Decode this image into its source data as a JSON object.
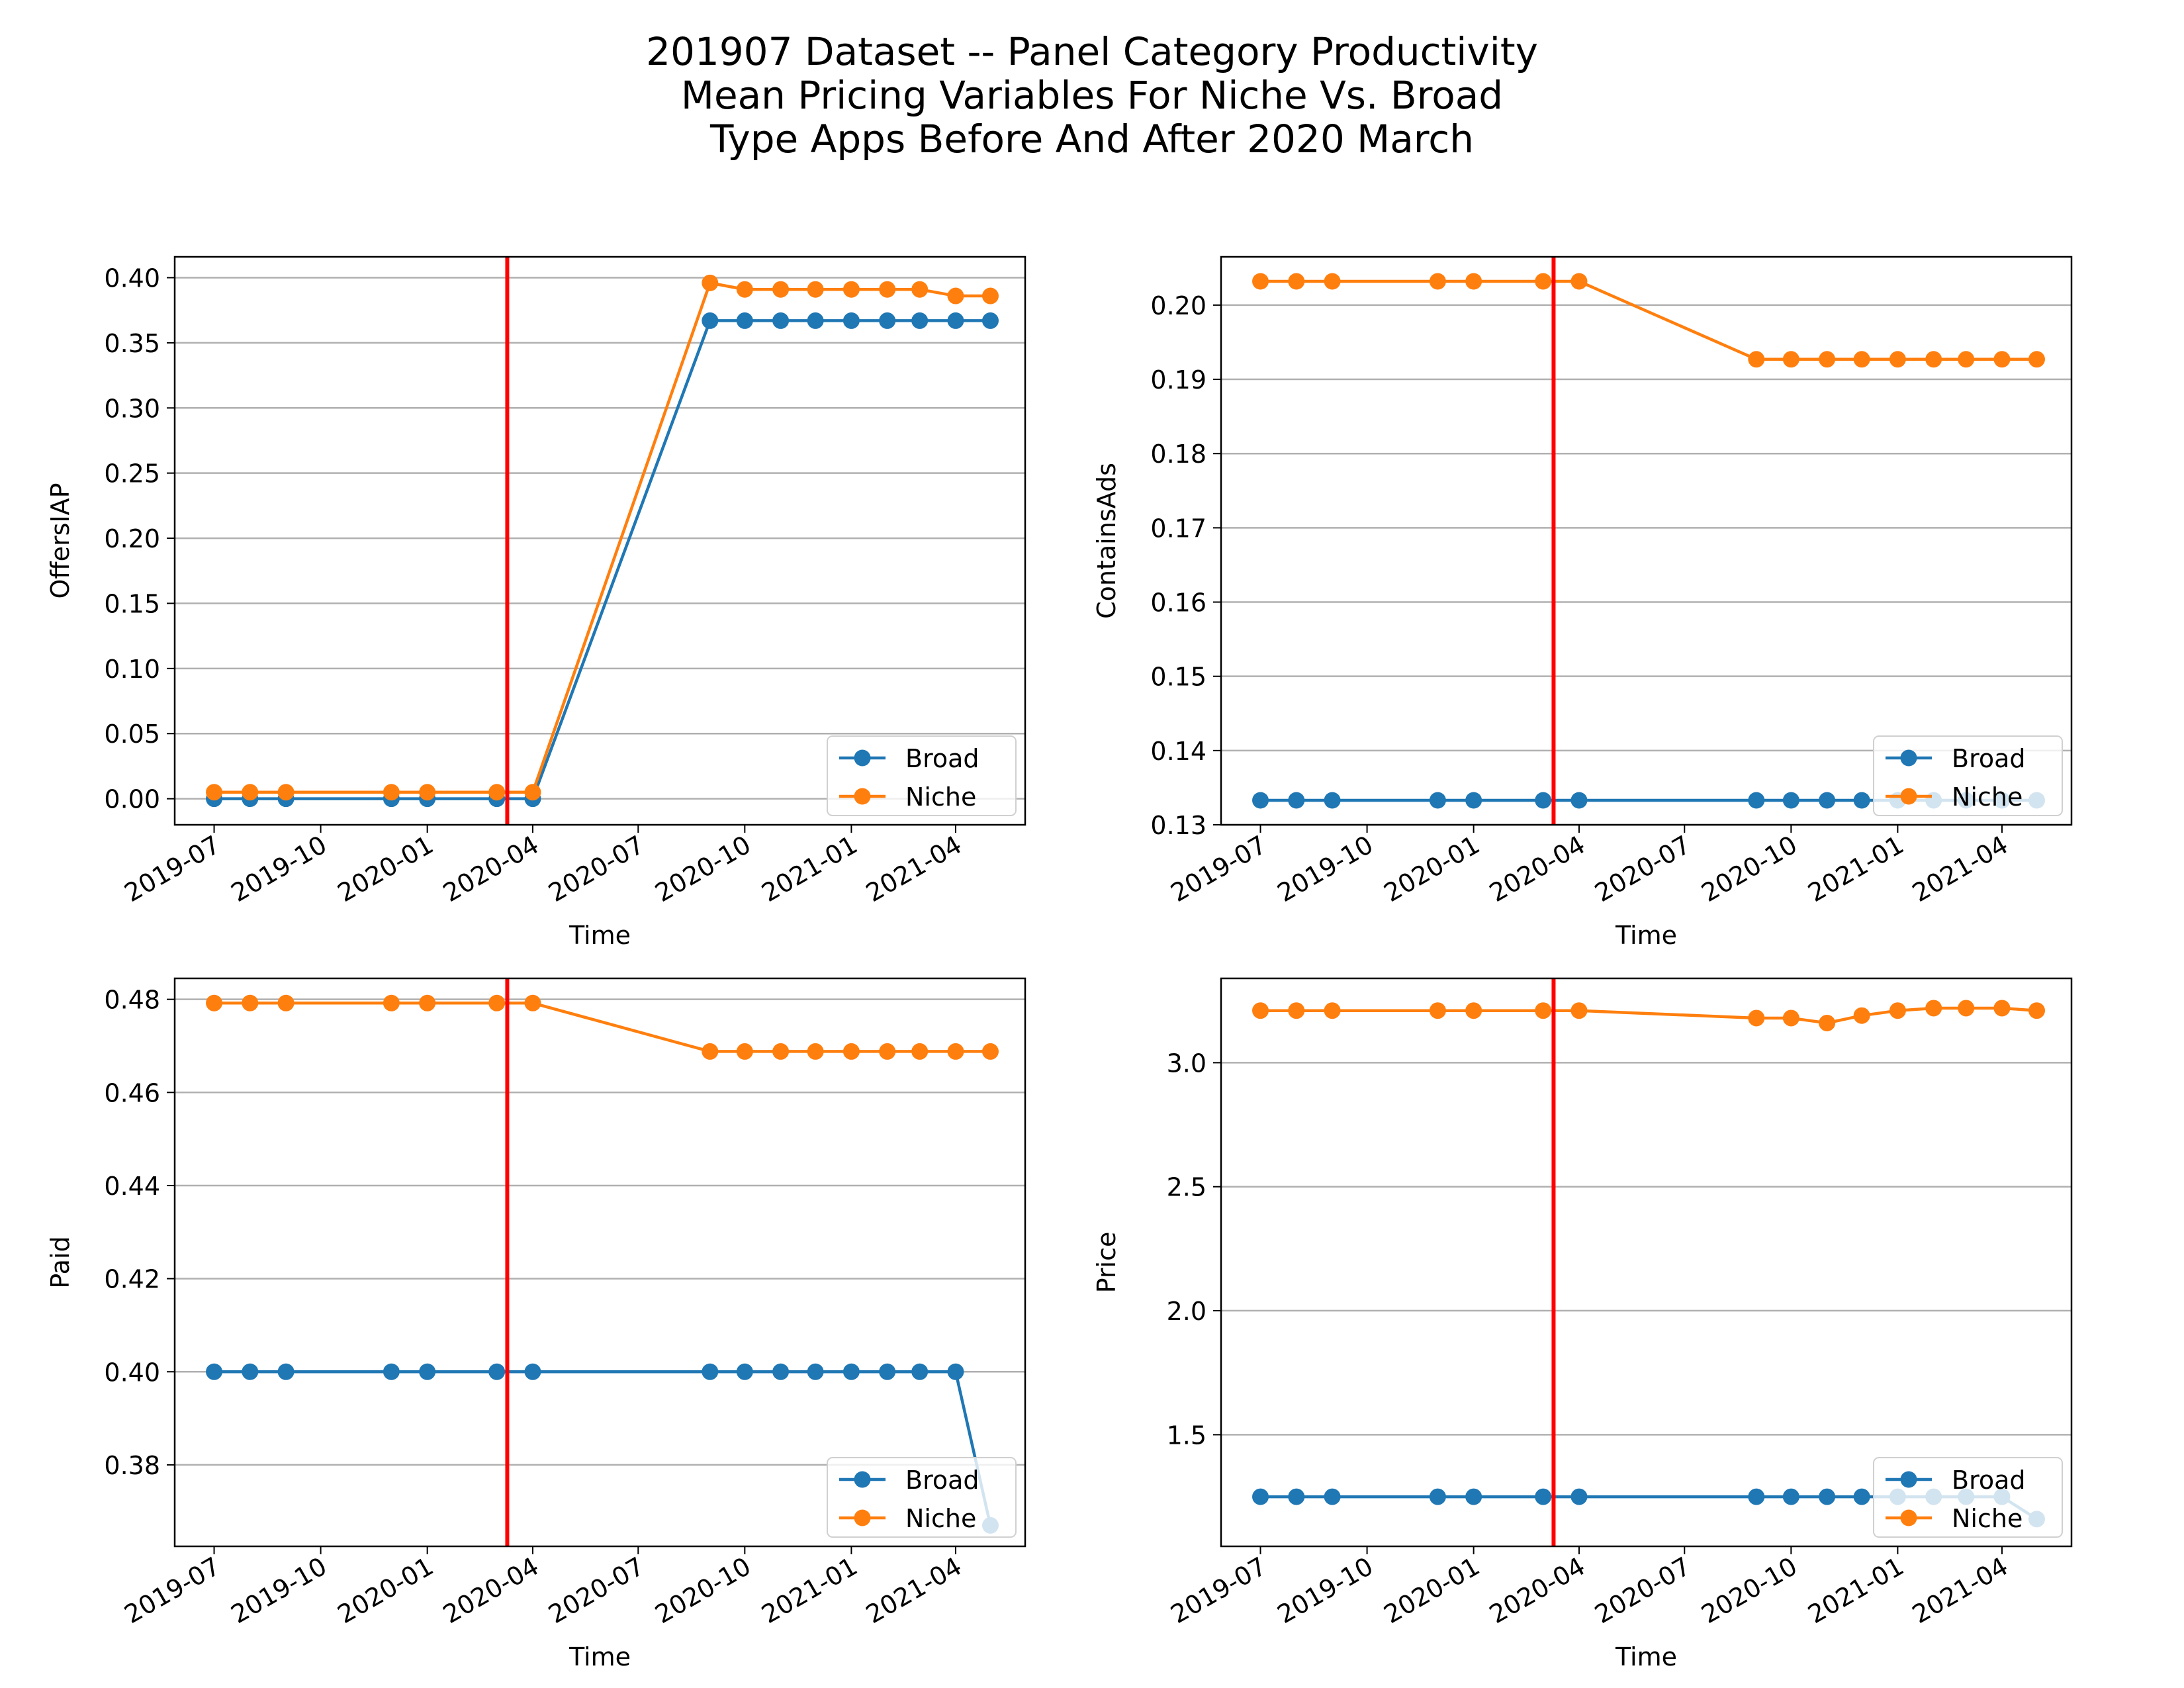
{
  "figure": {
    "title_lines": [
      "201907 Dataset -- Panel Category Productivity",
      "Mean Pricing Variables For Niche Vs. Broad",
      "Type Apps Before And After 2020 March"
    ]
  },
  "colors": {
    "broad": "#1f77b4",
    "niche": "#ff7f0e",
    "event_line": "#ff0000",
    "grid": "#b0b0b0"
  },
  "chart_data": [
    {
      "type": "line",
      "xlabel": "Time",
      "ylabel": "OffersIAP",
      "xticks": [
        "2019-07",
        "2019-10",
        "2020-01",
        "2020-04",
        "2020-07",
        "2020-10",
        "2021-01",
        "2021-04"
      ],
      "x_range": [
        "2019-05-28",
        "2021-05-31"
      ],
      "yticks": [
        "0.00",
        "0.05",
        "0.10",
        "0.15",
        "0.20",
        "0.25",
        "0.30",
        "0.35",
        "0.40"
      ],
      "ylim": [
        -0.02,
        0.416
      ],
      "event_date": "2020-03-10",
      "legend_loc": "lower right",
      "grid": "y",
      "series": [
        {
          "name": "Broad",
          "x": [
            "2019-07-01",
            "2019-08-01",
            "2019-09-01",
            "2019-12-01",
            "2020-01-01",
            "2020-03-01",
            "2020-04-01",
            "2020-09-01",
            "2020-10-01",
            "2020-11-01",
            "2020-12-01",
            "2021-01-01",
            "2021-02-01",
            "2021-03-01",
            "2021-04-01",
            "2021-05-01"
          ],
          "y": [
            0,
            0,
            0,
            0,
            0,
            0,
            0,
            0.367,
            0.367,
            0.367,
            0.367,
            0.367,
            0.367,
            0.367,
            0.367,
            0.367
          ]
        },
        {
          "name": "Niche",
          "x": [
            "2019-07-01",
            "2019-08-01",
            "2019-09-01",
            "2019-12-01",
            "2020-01-01",
            "2020-03-01",
            "2020-04-01",
            "2020-09-01",
            "2020-10-01",
            "2020-11-01",
            "2020-12-01",
            "2021-01-01",
            "2021-02-01",
            "2021-03-01",
            "2021-04-01",
            "2021-05-01"
          ],
          "y": [
            0.005,
            0.005,
            0.005,
            0.005,
            0.005,
            0.005,
            0.005,
            0.396,
            0.391,
            0.391,
            0.391,
            0.391,
            0.391,
            0.391,
            0.386,
            0.386
          ]
        }
      ]
    },
    {
      "type": "line",
      "xlabel": "Time",
      "ylabel": "ContainsAds",
      "xticks": [
        "2019-07",
        "2019-10",
        "2020-01",
        "2020-04",
        "2020-07",
        "2020-10",
        "2021-01",
        "2021-04"
      ],
      "x_range": [
        "2019-05-28",
        "2021-05-31"
      ],
      "yticks": [
        "0.13",
        "0.14",
        "0.15",
        "0.16",
        "0.17",
        "0.18",
        "0.19",
        "0.20"
      ],
      "ylim": [
        0.13,
        0.2065
      ],
      "event_date": "2020-03-10",
      "legend_loc": "lower right",
      "grid": "y",
      "series": [
        {
          "name": "Broad",
          "x": [
            "2019-07-01",
            "2019-08-01",
            "2019-09-01",
            "2019-12-01",
            "2020-01-01",
            "2020-03-01",
            "2020-04-01",
            "2020-09-01",
            "2020-10-01",
            "2020-11-01",
            "2020-12-01",
            "2021-01-01",
            "2021-02-01",
            "2021-03-01",
            "2021-04-01",
            "2021-05-01"
          ],
          "y": [
            0.1333,
            0.1333,
            0.1333,
            0.1333,
            0.1333,
            0.1333,
            0.1333,
            0.1333,
            0.1333,
            0.1333,
            0.1333,
            0.1333,
            0.1333,
            0.1333,
            0.1333,
            0.1333
          ]
        },
        {
          "name": "Niche",
          "x": [
            "2019-07-01",
            "2019-08-01",
            "2019-09-01",
            "2019-12-01",
            "2020-01-01",
            "2020-03-01",
            "2020-04-01",
            "2020-09-01",
            "2020-10-01",
            "2020-11-01",
            "2020-12-01",
            "2021-01-01",
            "2021-02-01",
            "2021-03-01",
            "2021-04-01",
            "2021-05-01"
          ],
          "y": [
            0.2032,
            0.2032,
            0.2032,
            0.2032,
            0.2032,
            0.2032,
            0.2032,
            0.1927,
            0.1927,
            0.1927,
            0.1927,
            0.1927,
            0.1927,
            0.1927,
            0.1927,
            0.1927
          ]
        }
      ]
    },
    {
      "type": "line",
      "xlabel": "Time",
      "ylabel": "Paid",
      "xticks": [
        "2019-07",
        "2019-10",
        "2020-01",
        "2020-04",
        "2020-07",
        "2020-10",
        "2021-01",
        "2021-04"
      ],
      "x_range": [
        "2019-05-28",
        "2021-05-31"
      ],
      "yticks": [
        "0.38",
        "0.40",
        "0.42",
        "0.44",
        "0.46",
        "0.48"
      ],
      "ylim": [
        0.3625,
        0.4845
      ],
      "event_date": "2020-03-10",
      "legend_loc": "lower right",
      "grid": "y",
      "series": [
        {
          "name": "Broad",
          "x": [
            "2019-07-01",
            "2019-08-01",
            "2019-09-01",
            "2019-12-01",
            "2020-01-01",
            "2020-03-01",
            "2020-04-01",
            "2020-09-01",
            "2020-10-01",
            "2020-11-01",
            "2020-12-01",
            "2021-01-01",
            "2021-02-01",
            "2021-03-01",
            "2021-04-01",
            "2021-05-01"
          ],
          "y": [
            0.4,
            0.4,
            0.4,
            0.4,
            0.4,
            0.4,
            0.4,
            0.4,
            0.4,
            0.4,
            0.4,
            0.4,
            0.4,
            0.4,
            0.4,
            0.367
          ]
        },
        {
          "name": "Niche",
          "x": [
            "2019-07-01",
            "2019-08-01",
            "2019-09-01",
            "2019-12-01",
            "2020-01-01",
            "2020-03-01",
            "2020-04-01",
            "2020-09-01",
            "2020-10-01",
            "2020-11-01",
            "2020-12-01",
            "2021-01-01",
            "2021-02-01",
            "2021-03-01",
            "2021-04-01",
            "2021-05-01"
          ],
          "y": [
            0.4792,
            0.4792,
            0.4792,
            0.4792,
            0.4792,
            0.4792,
            0.4792,
            0.4688,
            0.4688,
            0.4688,
            0.4688,
            0.4688,
            0.4688,
            0.4688,
            0.4688,
            0.4688
          ]
        }
      ]
    },
    {
      "type": "line",
      "xlabel": "Time",
      "ylabel": "Price",
      "xticks": [
        "2019-07",
        "2019-10",
        "2020-01",
        "2020-04",
        "2020-07",
        "2020-10",
        "2021-01",
        "2021-04"
      ],
      "x_range": [
        "2019-05-28",
        "2021-05-31"
      ],
      "yticks": [
        "1.5",
        "2.0",
        "2.5",
        "3.0"
      ],
      "ylim": [
        1.05,
        3.34
      ],
      "event_date": "2020-03-10",
      "legend_loc": "lower right",
      "grid": "y",
      "series": [
        {
          "name": "Broad",
          "x": [
            "2019-07-01",
            "2019-08-01",
            "2019-09-01",
            "2019-12-01",
            "2020-01-01",
            "2020-03-01",
            "2020-04-01",
            "2020-09-01",
            "2020-10-01",
            "2020-11-01",
            "2020-12-01",
            "2021-01-01",
            "2021-02-01",
            "2021-03-01",
            "2021-04-01",
            "2021-05-01"
          ],
          "y": [
            1.25,
            1.25,
            1.25,
            1.25,
            1.25,
            1.25,
            1.25,
            1.25,
            1.25,
            1.25,
            1.25,
            1.25,
            1.25,
            1.25,
            1.25,
            1.16
          ]
        },
        {
          "name": "Niche",
          "x": [
            "2019-07-01",
            "2019-08-01",
            "2019-09-01",
            "2019-12-01",
            "2020-01-01",
            "2020-03-01",
            "2020-04-01",
            "2020-09-01",
            "2020-10-01",
            "2020-11-01",
            "2020-12-01",
            "2021-01-01",
            "2021-02-01",
            "2021-03-01",
            "2021-04-01",
            "2021-05-01"
          ],
          "y": [
            3.21,
            3.21,
            3.21,
            3.21,
            3.21,
            3.21,
            3.21,
            3.18,
            3.18,
            3.16,
            3.19,
            3.21,
            3.22,
            3.22,
            3.22,
            3.21
          ]
        }
      ]
    }
  ]
}
